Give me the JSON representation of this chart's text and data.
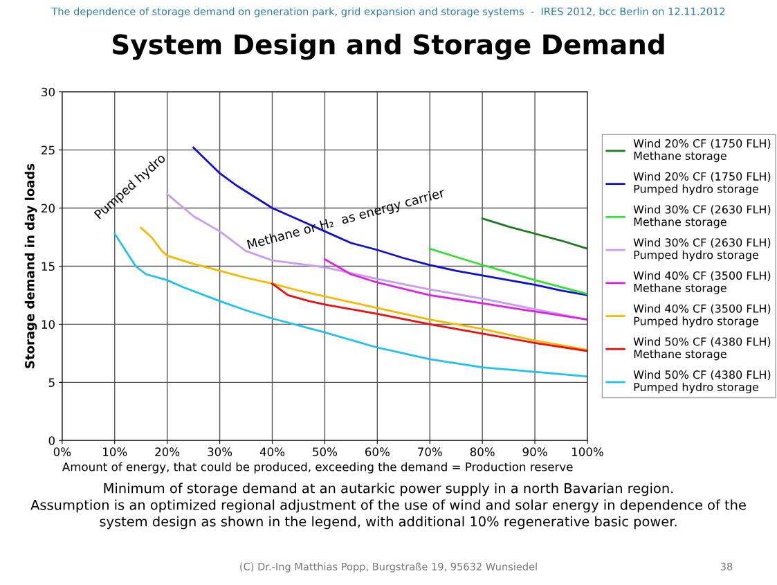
{
  "chart_data": {
    "type": "line",
    "title": "System Design and Storage Demand",
    "xlabel": "Amount of energy, that could be produced, exceeding the demand = Production reserve",
    "ylabel": "Storage demand in day loads",
    "annotations": [
      "The dependence of storage demand on generation park, grid expansion and storage systems  -  IRES 2012, bcc Berlin on 12.11.2012",
      "Pumped hydro",
      "Methane or H₂  as energy carrier",
      "Minimum of storage demand at an autarkic power supply in a north Bavarian region.\nAssumption is an optimized regional adjustment of the use of wind and solar energy in dependence of the\nsystem design as shown in the legend, with additional 10% regenerative basic power.",
      "(C) Dr.-Ing Matthias Popp, Burgstraße 19, 95632 Wunsiedel",
      "38"
    ],
    "xlim": [
      0,
      100
    ],
    "ylim": [
      0,
      30
    ],
    "xticks": [
      {
        "value": 0,
        "label": "0%"
      },
      {
        "value": 10,
        "label": "10%"
      },
      {
        "value": 20,
        "label": "20%"
      },
      {
        "value": 30,
        "label": "30%"
      },
      {
        "value": 40,
        "label": "40%"
      },
      {
        "value": 50,
        "label": "50%"
      },
      {
        "value": 60,
        "label": "60%"
      },
      {
        "value": 70,
        "label": "70%"
      },
      {
        "value": 80,
        "label": "80%"
      },
      {
        "value": 90,
        "label": "90%"
      },
      {
        "value": 100,
        "label": "100%"
      }
    ],
    "yticks": [
      0,
      5,
      10,
      15,
      20,
      25,
      30
    ],
    "grid": true,
    "legend": "right",
    "marker": "none",
    "line_style": "solid",
    "series": [
      {
        "name": "Wind 20% CF (1750 FLH)\nMethane storage",
        "color": "#1e7a1e",
        "x": [
          80,
          85,
          90,
          95,
          100
        ],
        "values": [
          19.1,
          18.4,
          17.8,
          17.2,
          16.5
        ]
      },
      {
        "name": "Wind 20% CF (1750 FLH)\nPumped hydro storage",
        "color": "#1010d0",
        "x": [
          25,
          30,
          33,
          40,
          45,
          50,
          55,
          60,
          65,
          70,
          75,
          80,
          85,
          90,
          95,
          100
        ],
        "values": [
          25.2,
          23.0,
          22.0,
          20.0,
          19.0,
          18.0,
          17.0,
          16.4,
          15.7,
          15.1,
          14.6,
          14.2,
          13.8,
          13.4,
          12.9,
          12.5
        ]
      },
      {
        "name": "Wind 30% CF (2630 FLH)\nMethane storage",
        "color": "#33e033",
        "x": [
          70,
          80,
          90,
          100
        ],
        "values": [
          16.5,
          15.1,
          13.8,
          12.6
        ]
      },
      {
        "name": "Wind 30% CF (2630 FLH)\nPumped hydro storage",
        "color": "#c89cf0",
        "x": [
          20,
          25,
          30,
          35,
          40,
          45,
          50,
          60,
          70,
          80,
          90,
          100
        ],
        "values": [
          21.2,
          19.3,
          18.0,
          16.3,
          15.5,
          15.2,
          14.9,
          13.9,
          13.0,
          12.2,
          11.3,
          10.4
        ]
      },
      {
        "name": "Wind 40% CF (3500 FLH)\nMethane storage",
        "color": "#e020e0",
        "x": [
          50,
          55,
          60,
          70,
          80,
          90,
          100
        ],
        "values": [
          15.6,
          14.3,
          13.6,
          12.5,
          11.8,
          11.1,
          10.4
        ]
      },
      {
        "name": "Wind 40% CF (3500 FLH)\nPumped hydro storage",
        "color": "#f5b800",
        "x": [
          15,
          17,
          19,
          20,
          25,
          30,
          35,
          40,
          45,
          50,
          60,
          70,
          80,
          90,
          100
        ],
        "values": [
          18.3,
          17.5,
          16.3,
          15.9,
          15.2,
          14.6,
          14.0,
          13.5,
          12.9,
          12.4,
          11.4,
          10.4,
          9.6,
          8.6,
          7.8
        ]
      },
      {
        "name": "Wind 50% CF (4380 FLH)\nMethane storage",
        "color": "#e81010",
        "x": [
          40,
          43,
          47,
          50,
          60,
          70,
          80,
          90,
          100
        ],
        "values": [
          13.5,
          12.5,
          12.0,
          11.7,
          10.9,
          10.0,
          9.2,
          8.4,
          7.7
        ]
      },
      {
        "name": "Wind 50% CF (4380 FLH)\nPumped hydro storage",
        "color": "#20c0f0",
        "x": [
          10,
          14,
          16,
          20,
          23,
          30,
          35,
          40,
          50,
          60,
          70,
          80,
          90,
          100
        ],
        "values": [
          17.8,
          15.0,
          14.3,
          13.8,
          13.2,
          12.0,
          11.2,
          10.5,
          9.3,
          8.0,
          7.0,
          6.3,
          5.9,
          5.5
        ]
      }
    ]
  }
}
